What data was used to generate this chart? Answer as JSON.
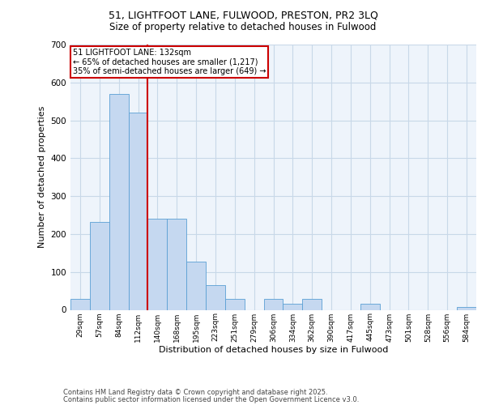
{
  "title_line1": "51, LIGHTFOOT LANE, FULWOOD, PRESTON, PR2 3LQ",
  "title_line2": "Size of property relative to detached houses in Fulwood",
  "xlabel": "Distribution of detached houses by size in Fulwood",
  "ylabel": "Number of detached properties",
  "categories": [
    "29sqm",
    "57sqm",
    "84sqm",
    "112sqm",
    "140sqm",
    "168sqm",
    "195sqm",
    "223sqm",
    "251sqm",
    "279sqm",
    "306sqm",
    "334sqm",
    "362sqm",
    "390sqm",
    "417sqm",
    "445sqm",
    "473sqm",
    "501sqm",
    "528sqm",
    "556sqm",
    "584sqm"
  ],
  "values": [
    28,
    232,
    570,
    520,
    240,
    240,
    128,
    65,
    28,
    0,
    28,
    15,
    28,
    0,
    0,
    15,
    0,
    0,
    0,
    0,
    8
  ],
  "bar_color": "#c5d8f0",
  "bar_edge_color": "#5a9fd4",
  "grid_color": "#c8d8e8",
  "bg_color": "#eef4fb",
  "vline_index": 3.5,
  "marker_label": "51 LIGHTFOOT LANE: 132sqm",
  "annotation_line1": "← 65% of detached houses are smaller (1,217)",
  "annotation_line2": "35% of semi-detached houses are larger (649) →",
  "annotation_box_color": "#ffffff",
  "annotation_box_edge": "#cc0000",
  "vline_color": "#cc0000",
  "footer_line1": "Contains HM Land Registry data © Crown copyright and database right 2025.",
  "footer_line2": "Contains public sector information licensed under the Open Government Licence v3.0.",
  "ylim": [
    0,
    700
  ],
  "yticks": [
    0,
    100,
    200,
    300,
    400,
    500,
    600,
    700
  ]
}
